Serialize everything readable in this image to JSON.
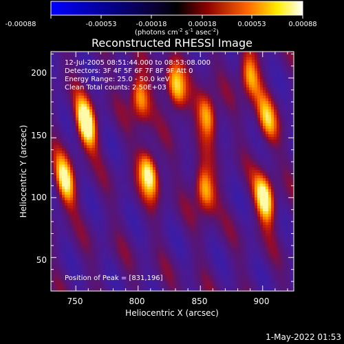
{
  "colorbar": {
    "tick_labels": [
      "-0.00088",
      "-0.00053",
      "-0.00018",
      "0.00018",
      "0.00053",
      "0.00088"
    ],
    "unit_main": "(photons cm",
    "unit_sup1": "-2",
    "unit_mid": " s",
    "unit_sup2": "-1",
    "unit_end": " asec",
    "unit_sup3": "-2",
    "unit_close": ")",
    "colormap": [
      "#0000ff",
      "#000000",
      "#8b0000",
      "#ff6600",
      "#ffee00",
      "#ffffff"
    ]
  },
  "chart_data": {
    "type": "heatmap",
    "title": "Reconstructed RHESSI Image",
    "xlabel": "Heliocentric X (arcsec)",
    "ylabel": "Heliocentric Y (arcsec)",
    "xlim": [
      730,
      925
    ],
    "ylim": [
      22,
      222
    ],
    "xticks": [
      "750",
      "800",
      "850",
      "900"
    ],
    "yticks": [
      "50",
      "100",
      "150",
      "200"
    ],
    "peak_position": [
      831,
      196
    ],
    "info_lines": [
      "12-Jul-2005 08:51:44.000 to 08:53:08.000",
      "Detectors: 3F 4F 5F 6F 7F 8F 9F Att 0",
      "Energy Range: 25.0 - 50.0 keV",
      "Clean     Total counts: 2.50E+03"
    ],
    "peak_label": "Position of Peak = [831,196]",
    "bright_sources": [
      {
        "x": 757,
        "y": 163,
        "intensity": 1.0
      },
      {
        "x": 740,
        "y": 115,
        "intensity": 0.8
      },
      {
        "x": 800,
        "y": 185,
        "intensity": 0.75
      },
      {
        "x": 808,
        "y": 122,
        "intensity": 0.9
      },
      {
        "x": 829,
        "y": 192,
        "intensity": 0.8
      },
      {
        "x": 855,
        "y": 170,
        "intensity": 0.75
      },
      {
        "x": 852,
        "y": 108,
        "intensity": 0.8
      },
      {
        "x": 888,
        "y": 203,
        "intensity": 0.7
      },
      {
        "x": 901,
        "y": 100,
        "intensity": 0.95
      },
      {
        "x": 902,
        "y": 165,
        "intensity": 0.6
      }
    ]
  },
  "timestamp": "1-May-2022 01:53"
}
